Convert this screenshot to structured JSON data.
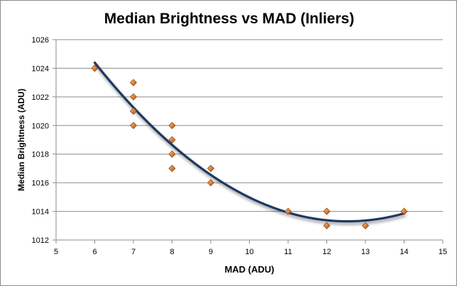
{
  "chart_data": {
    "type": "scatter",
    "title": "Median Brightness vs MAD (Inliers)",
    "xlabel": "MAD (ADU)",
    "ylabel": "Median Brightness  (ADU)",
    "xlim": [
      5,
      15
    ],
    "ylim": [
      1012,
      1026
    ],
    "xticks": [
      5,
      6,
      7,
      8,
      9,
      10,
      11,
      12,
      13,
      14,
      15
    ],
    "yticks": [
      1012,
      1014,
      1016,
      1018,
      1020,
      1022,
      1024,
      1026
    ],
    "grid": "horizontal",
    "legend": "none",
    "points": [
      {
        "x": 6,
        "y": 1024
      },
      {
        "x": 7,
        "y": 1023
      },
      {
        "x": 7,
        "y": 1022
      },
      {
        "x": 7,
        "y": 1021
      },
      {
        "x": 7,
        "y": 1020
      },
      {
        "x": 8,
        "y": 1020
      },
      {
        "x": 8,
        "y": 1019
      },
      {
        "x": 8,
        "y": 1018
      },
      {
        "x": 8,
        "y": 1017
      },
      {
        "x": 9,
        "y": 1017
      },
      {
        "x": 9,
        "y": 1016
      },
      {
        "x": 11,
        "y": 1014
      },
      {
        "x": 12,
        "y": 1014
      },
      {
        "x": 12,
        "y": 1013
      },
      {
        "x": 13,
        "y": 1013
      },
      {
        "x": 14,
        "y": 1014
      }
    ],
    "trendline": {
      "type": "polynomial",
      "order": 2,
      "color": "#1f3864"
    },
    "marker_color": "#e08a3c",
    "marker_stroke": "#8a4a14"
  }
}
